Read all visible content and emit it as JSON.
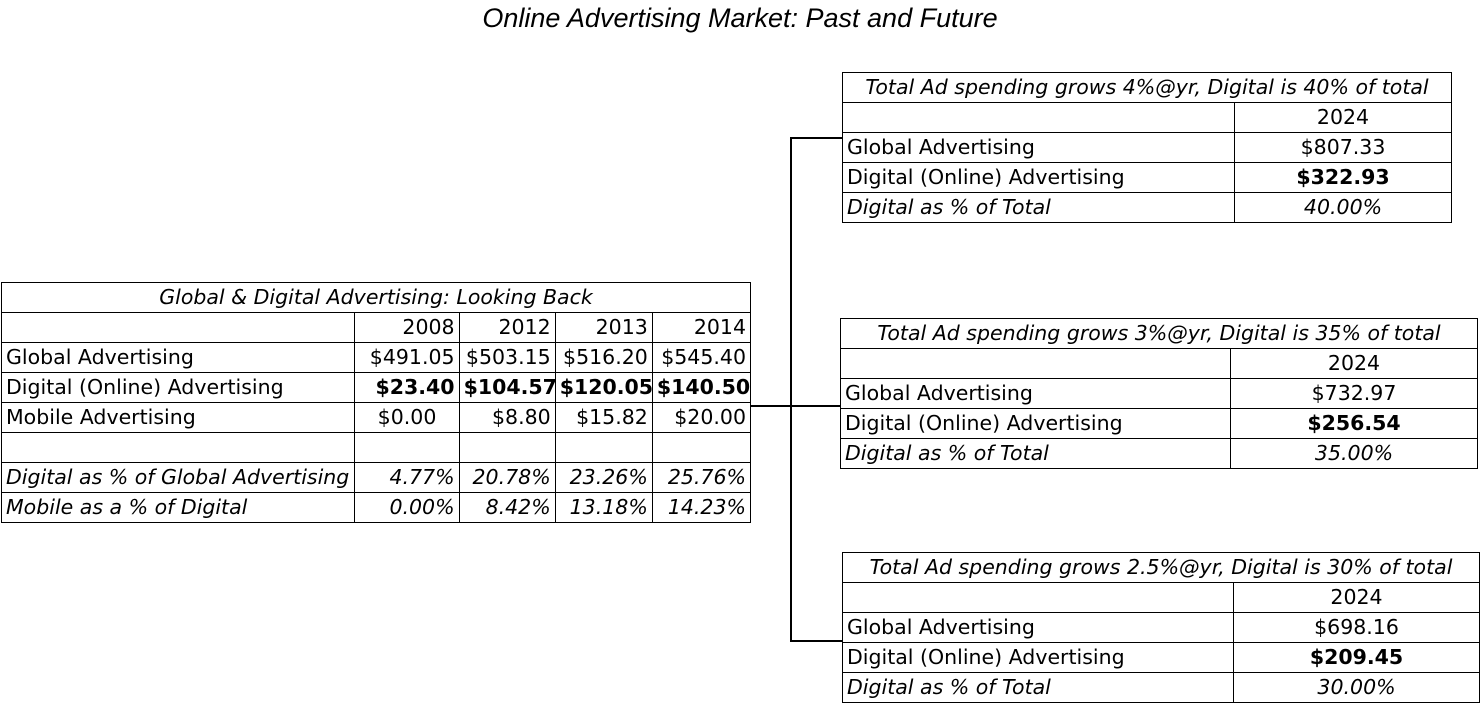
{
  "title": "Online Advertising Market: Past and Future",
  "history": {
    "caption": "Global & Digital Advertising: Looking  Back",
    "years": [
      "2008",
      "2012",
      "2013",
      "2014"
    ],
    "rows": {
      "global": {
        "label": "Global Advertising",
        "values": [
          "$491.05",
          "$503.15",
          "$516.20",
          "$545.40"
        ]
      },
      "digital": {
        "label": "Digital (Online) Advertising",
        "values": [
          "$23.40",
          "$104.57",
          "$120.05",
          "$140.50"
        ]
      },
      "mobile": {
        "label": "Mobile Advertising",
        "values": [
          "$0.00",
          "$8.80",
          "$15.82",
          "$20.00"
        ]
      },
      "digital_pct": {
        "label": "Digital as % of Global Advertising",
        "values": [
          "4.77%",
          "20.78%",
          "23.26%",
          "25.76%"
        ]
      },
      "mobile_pct": {
        "label": "Mobile as a % of Digital",
        "values": [
          "0.00%",
          "8.42%",
          "13.18%",
          "14.23%"
        ]
      }
    }
  },
  "scenarios": [
    {
      "caption": "Total Ad spending grows 4%@yr, Digital is 40% of total",
      "year": "2024",
      "global_label": "Global Advertising",
      "global_value": "$807.33",
      "digital_label": "Digital (Online) Advertising",
      "digital_value": "$322.93",
      "pct_label": "Digital as % of Total",
      "pct_value": "40.00%"
    },
    {
      "caption": "Total Ad spending grows 3%@yr, Digital is 35% of total",
      "year": "2024",
      "global_label": "Global Advertising",
      "global_value": "$732.97",
      "digital_label": "Digital (Online) Advertising",
      "digital_value": "$256.54",
      "pct_label": "Digital as % of Total",
      "pct_value": "35.00%"
    },
    {
      "caption": "Total Ad spending grows 2.5%@yr, Digital is 30% of total",
      "year": "2024",
      "global_label": "Global Advertising",
      "global_value": "$698.16",
      "digital_label": "Digital (Online) Advertising",
      "digital_value": "$209.45",
      "pct_label": "Digital as % of Total",
      "pct_value": "30.00%"
    }
  ]
}
